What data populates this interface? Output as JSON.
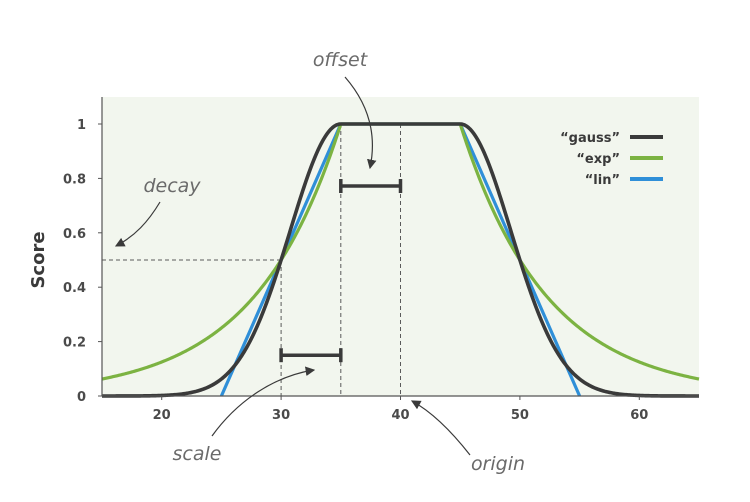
{
  "chart_data": {
    "type": "line",
    "title": "",
    "xlabel": "",
    "ylabel": "Score",
    "xlim": [
      15,
      65
    ],
    "ylim": [
      0,
      1
    ],
    "grid": false,
    "legend_position": "top-right",
    "x_ticks": [
      "20",
      "30",
      "40",
      "50",
      "60"
    ],
    "y_ticks": [
      "0",
      "0.2",
      "0.4",
      "0.6",
      "0.8",
      "1"
    ],
    "origin": 40,
    "offset": 5,
    "scale": 5,
    "decay": 0.5,
    "series": [
      {
        "name": "“gauss”",
        "color": "#3a3a3a",
        "x": [
          15,
          20,
          22,
          24,
          26,
          28,
          30,
          32,
          34,
          35,
          40,
          45,
          46,
          48,
          50,
          52,
          54,
          56,
          58,
          60,
          65
        ],
        "y": [
          0,
          0.0005,
          0.004,
          0.025,
          0.105,
          0.287,
          0.5,
          0.801,
          0.973,
          1,
          1,
          1,
          0.973,
          0.801,
          0.5,
          0.287,
          0.105,
          0.025,
          0.004,
          0.0005,
          0
        ]
      },
      {
        "name": "“exp”",
        "color": "#7cb342",
        "x": [
          15,
          20,
          25,
          30,
          32,
          34,
          35,
          40,
          45,
          46,
          48,
          50,
          55,
          60,
          65
        ],
        "y": [
          0.063,
          0.125,
          0.25,
          0.5,
          0.659,
          0.871,
          1,
          1,
          1,
          0.871,
          0.659,
          0.5,
          0.25,
          0.125,
          0.063
        ]
      },
      {
        "name": "“lin”",
        "color": "#2f8fd8",
        "x": [
          25,
          35,
          40,
          45,
          55
        ],
        "y": [
          0,
          1,
          1,
          1,
          0
        ]
      }
    ],
    "annotations": [
      "offset",
      "decay",
      "scale",
      "origin"
    ]
  }
}
